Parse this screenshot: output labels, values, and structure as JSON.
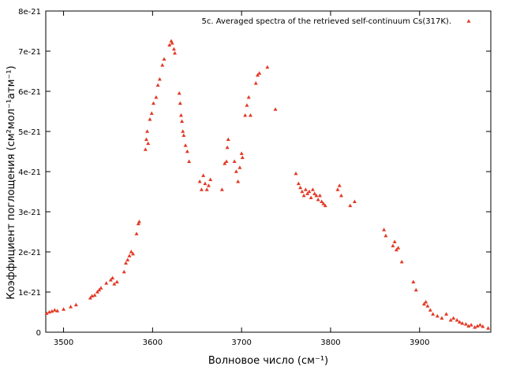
{
  "chart_data": {
    "type": "scatter",
    "title": "",
    "xlabel": "Волновое число (см⁻¹)",
    "ylabel": "Коэффициент поглощения (см²мол⁻¹атм⁻¹)",
    "xlim": [
      3480,
      3980
    ],
    "ylim": [
      0,
      8e-21
    ],
    "xticks": [
      3500,
      3600,
      3700,
      3800,
      3900
    ],
    "xtick_labels": [
      "3500",
      "3600",
      "3700",
      "3800",
      "3900"
    ],
    "yticks": [
      0,
      1e-21,
      2e-21,
      3e-21,
      4e-21,
      5e-21,
      6e-21,
      7e-21,
      8e-21
    ],
    "ytick_labels": [
      "0",
      "1e-21",
      "2e-21",
      "3e-21",
      "4e-21",
      "5e-21",
      "6e-21",
      "7e-21",
      "8e-21"
    ],
    "grid": false,
    "legend_position": "top-right",
    "marker": "triangle",
    "color": "#e23a26",
    "series": [
      {
        "name": "5c. Averaged spectra of the retrieved self-continuum Cs(317K).",
        "points": [
          [
            3481,
            4.7e-22
          ],
          [
            3484,
            5e-22
          ],
          [
            3487,
            5.2e-22
          ],
          [
            3490,
            5.5e-22
          ],
          [
            3493,
            5.3e-22
          ],
          [
            3500,
            5.7e-22
          ],
          [
            3508,
            6.3e-22
          ],
          [
            3514,
            6.8e-22
          ],
          [
            3530,
            8.5e-22
          ],
          [
            3532,
            9e-22
          ],
          [
            3535,
            9.2e-22
          ],
          [
            3538,
            1e-21
          ],
          [
            3540,
            1.05e-21
          ],
          [
            3542,
            1.1e-21
          ],
          [
            3548,
            1.22e-21
          ],
          [
            3553,
            1.3e-21
          ],
          [
            3555,
            1.35e-21
          ],
          [
            3557,
            1.2e-21
          ],
          [
            3560,
            1.25e-21
          ],
          [
            3568,
            1.5e-21
          ],
          [
            3570,
            1.72e-21
          ],
          [
            3572,
            1.8e-21
          ],
          [
            3574,
            1.9e-21
          ],
          [
            3576,
            2e-21
          ],
          [
            3578,
            1.95e-21
          ],
          [
            3582,
            2.45e-21
          ],
          [
            3584,
            2.7e-21
          ],
          [
            3585,
            2.75e-21
          ],
          [
            3592,
            4.55e-21
          ],
          [
            3593,
            4.8e-21
          ],
          [
            3594,
            5e-21
          ],
          [
            3595,
            4.7e-21
          ],
          [
            3597,
            5.3e-21
          ],
          [
            3599,
            5.45e-21
          ],
          [
            3601,
            5.7e-21
          ],
          [
            3604,
            5.85e-21
          ],
          [
            3606,
            6.15e-21
          ],
          [
            3608,
            6.3e-21
          ],
          [
            3611,
            6.65e-21
          ],
          [
            3613,
            6.8e-21
          ],
          [
            3619,
            7.15e-21
          ],
          [
            3621,
            7.25e-21
          ],
          [
            3622,
            7.2e-21
          ],
          [
            3624,
            7.05e-21
          ],
          [
            3625,
            6.95e-21
          ],
          [
            3630,
            5.95e-21
          ],
          [
            3631,
            5.7e-21
          ],
          [
            3632,
            5.4e-21
          ],
          [
            3633,
            5.25e-21
          ],
          [
            3634,
            5e-21
          ],
          [
            3635,
            4.9e-21
          ],
          [
            3637,
            4.65e-21
          ],
          [
            3639,
            4.5e-21
          ],
          [
            3641,
            4.25e-21
          ],
          [
            3653,
            3.75e-21
          ],
          [
            3655,
            3.55e-21
          ],
          [
            3657,
            3.9e-21
          ],
          [
            3659,
            3.7e-21
          ],
          [
            3661,
            3.55e-21
          ],
          [
            3663,
            3.65e-21
          ],
          [
            3665,
            3.8e-21
          ],
          [
            3678,
            3.55e-21
          ],
          [
            3681,
            4.2e-21
          ],
          [
            3683,
            4.25e-21
          ],
          [
            3684,
            4.6e-21
          ],
          [
            3685,
            4.8e-21
          ],
          [
            3692,
            4.25e-21
          ],
          [
            3694,
            4e-21
          ],
          [
            3696,
            3.75e-21
          ],
          [
            3698,
            4.1e-21
          ],
          [
            3700,
            4.45e-21
          ],
          [
            3701,
            4.35e-21
          ],
          [
            3704,
            5.4e-21
          ],
          [
            3706,
            5.65e-21
          ],
          [
            3708,
            5.85e-21
          ],
          [
            3710,
            5.4e-21
          ],
          [
            3716,
            6.2e-21
          ],
          [
            3718,
            6.4e-21
          ],
          [
            3720,
            6.45e-21
          ],
          [
            3729,
            6.6e-21
          ],
          [
            3738,
            5.55e-21
          ],
          [
            3761,
            3.95e-21
          ],
          [
            3764,
            3.7e-21
          ],
          [
            3766,
            3.6e-21
          ],
          [
            3768,
            3.5e-21
          ],
          [
            3770,
            3.4e-21
          ],
          [
            3772,
            3.55e-21
          ],
          [
            3774,
            3.45e-21
          ],
          [
            3776,
            3.5e-21
          ],
          [
            3778,
            3.35e-21
          ],
          [
            3780,
            3.55e-21
          ],
          [
            3782,
            3.45e-21
          ],
          [
            3784,
            3.4e-21
          ],
          [
            3786,
            3.3e-21
          ],
          [
            3788,
            3.4e-21
          ],
          [
            3790,
            3.25e-21
          ],
          [
            3792,
            3.2e-21
          ],
          [
            3794,
            3.15e-21
          ],
          [
            3808,
            3.55e-21
          ],
          [
            3810,
            3.65e-21
          ],
          [
            3812,
            3.4e-21
          ],
          [
            3822,
            3.15e-21
          ],
          [
            3827,
            3.25e-21
          ],
          [
            3860,
            2.55e-21
          ],
          [
            3862,
            2.4e-21
          ],
          [
            3870,
            2.15e-21
          ],
          [
            3872,
            2.25e-21
          ],
          [
            3874,
            2.05e-21
          ],
          [
            3876,
            2.1e-21
          ],
          [
            3880,
            1.75e-21
          ],
          [
            3893,
            1.25e-21
          ],
          [
            3896,
            1.05e-21
          ],
          [
            3905,
            7e-22
          ],
          [
            3907,
            7.5e-22
          ],
          [
            3909,
            6.5e-22
          ],
          [
            3912,
            5.5e-22
          ],
          [
            3915,
            4.5e-22
          ],
          [
            3920,
            4e-22
          ],
          [
            3925,
            3.5e-22
          ],
          [
            3930,
            4.5e-22
          ],
          [
            3935,
            3e-22
          ],
          [
            3938,
            3.5e-22
          ],
          [
            3942,
            3e-22
          ],
          [
            3945,
            2.5e-22
          ],
          [
            3948,
            2.2e-22
          ],
          [
            3952,
            2e-22
          ],
          [
            3955,
            1.5e-22
          ],
          [
            3958,
            1.8e-22
          ],
          [
            3962,
            1.2e-22
          ],
          [
            3965,
            1.5e-22
          ],
          [
            3968,
            1.8e-22
          ],
          [
            3971,
            1.4e-22
          ],
          [
            3977,
            1e-22
          ]
        ]
      }
    ]
  }
}
